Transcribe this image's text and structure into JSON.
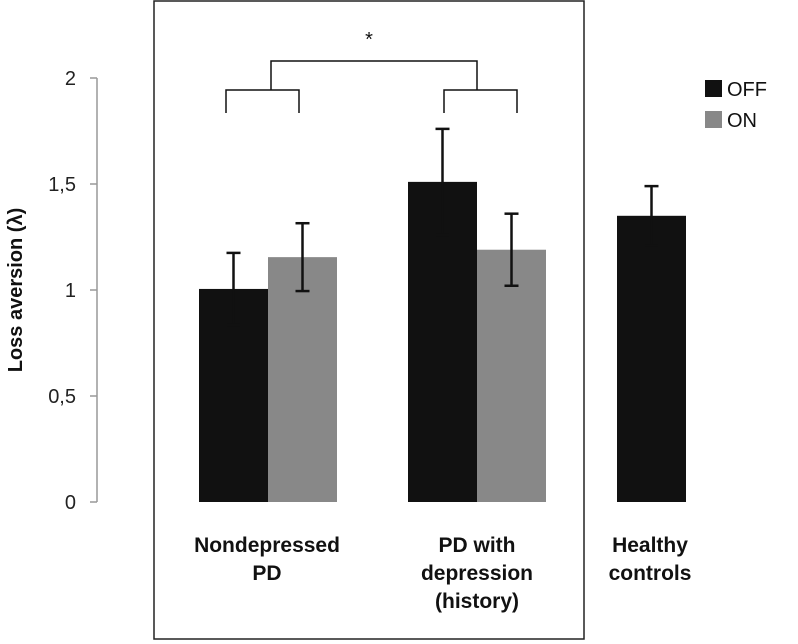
{
  "chart_data": {
    "type": "bar",
    "title": "",
    "xlabel": "",
    "ylabel": "Loss aversion (λ)",
    "ylim": [
      0,
      2
    ],
    "yticks": [
      {
        "value": 0,
        "label": "0"
      },
      {
        "value": 0.5,
        "label": "0,5"
      },
      {
        "value": 1,
        "label": "1"
      },
      {
        "value": 1.5,
        "label": "1,5"
      },
      {
        "value": 2,
        "label": "2"
      }
    ],
    "categories": [
      {
        "lines": [
          "Nondepressed",
          "PD"
        ]
      },
      {
        "lines": [
          "PD with",
          "depression",
          "(history)"
        ]
      },
      {
        "lines": [
          "Healthy",
          "controls"
        ]
      }
    ],
    "series": [
      {
        "name": "OFF",
        "color": "#111111",
        "values": [
          1.005,
          1.51,
          1.35
        ],
        "errors": [
          0.17,
          0.25,
          0.14
        ]
      },
      {
        "name": "ON",
        "color": "#888888",
        "values": [
          1.155,
          1.19,
          null
        ],
        "errors": [
          0.16,
          0.17,
          null
        ]
      }
    ],
    "legend": {
      "position": "top-right",
      "entries": [
        "OFF",
        "ON"
      ]
    },
    "annotations": {
      "significance": "*"
    }
  }
}
